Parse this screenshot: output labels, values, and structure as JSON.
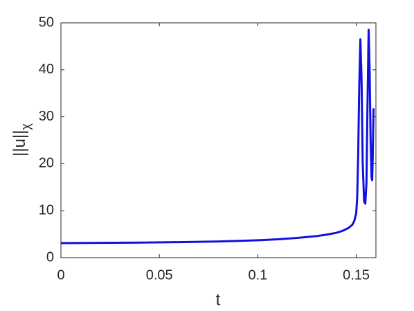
{
  "chart_data": {
    "type": "line",
    "xlabel": "t",
    "ylabel": "||u||",
    "ylabel_subscript": "χ",
    "x": [
      0,
      0.02,
      0.04,
      0.06,
      0.08,
      0.1,
      0.11,
      0.12,
      0.13,
      0.135,
      0.14,
      0.143,
      0.146,
      0.148,
      0.149,
      0.15,
      0.1505,
      0.151,
      0.1515,
      0.1521,
      0.1527,
      0.1533,
      0.154,
      0.1546,
      0.1552,
      0.1557,
      0.1563,
      0.1568,
      0.1573,
      0.1578,
      0.1581,
      0.1584,
      0.1588
    ],
    "series": [
      {
        "color": "#1010e0",
        "values": [
          3.1,
          3.15,
          3.2,
          3.3,
          3.45,
          3.7,
          3.9,
          4.2,
          4.6,
          4.9,
          5.3,
          5.7,
          6.3,
          7.0,
          7.8,
          9.5,
          13,
          22,
          36,
          46.5,
          38,
          20,
          12,
          11.5,
          16,
          32,
          48.5,
          40,
          25,
          17,
          16.5,
          22,
          31.8
        ]
      }
    ],
    "xlim": [
      0,
      0.16
    ],
    "xticks": [
      0,
      0.05,
      0.1,
      0.15
    ],
    "ylim": [
      0,
      50
    ],
    "yticks": [
      0,
      10,
      20,
      30,
      40,
      50
    ],
    "grid": false
  }
}
